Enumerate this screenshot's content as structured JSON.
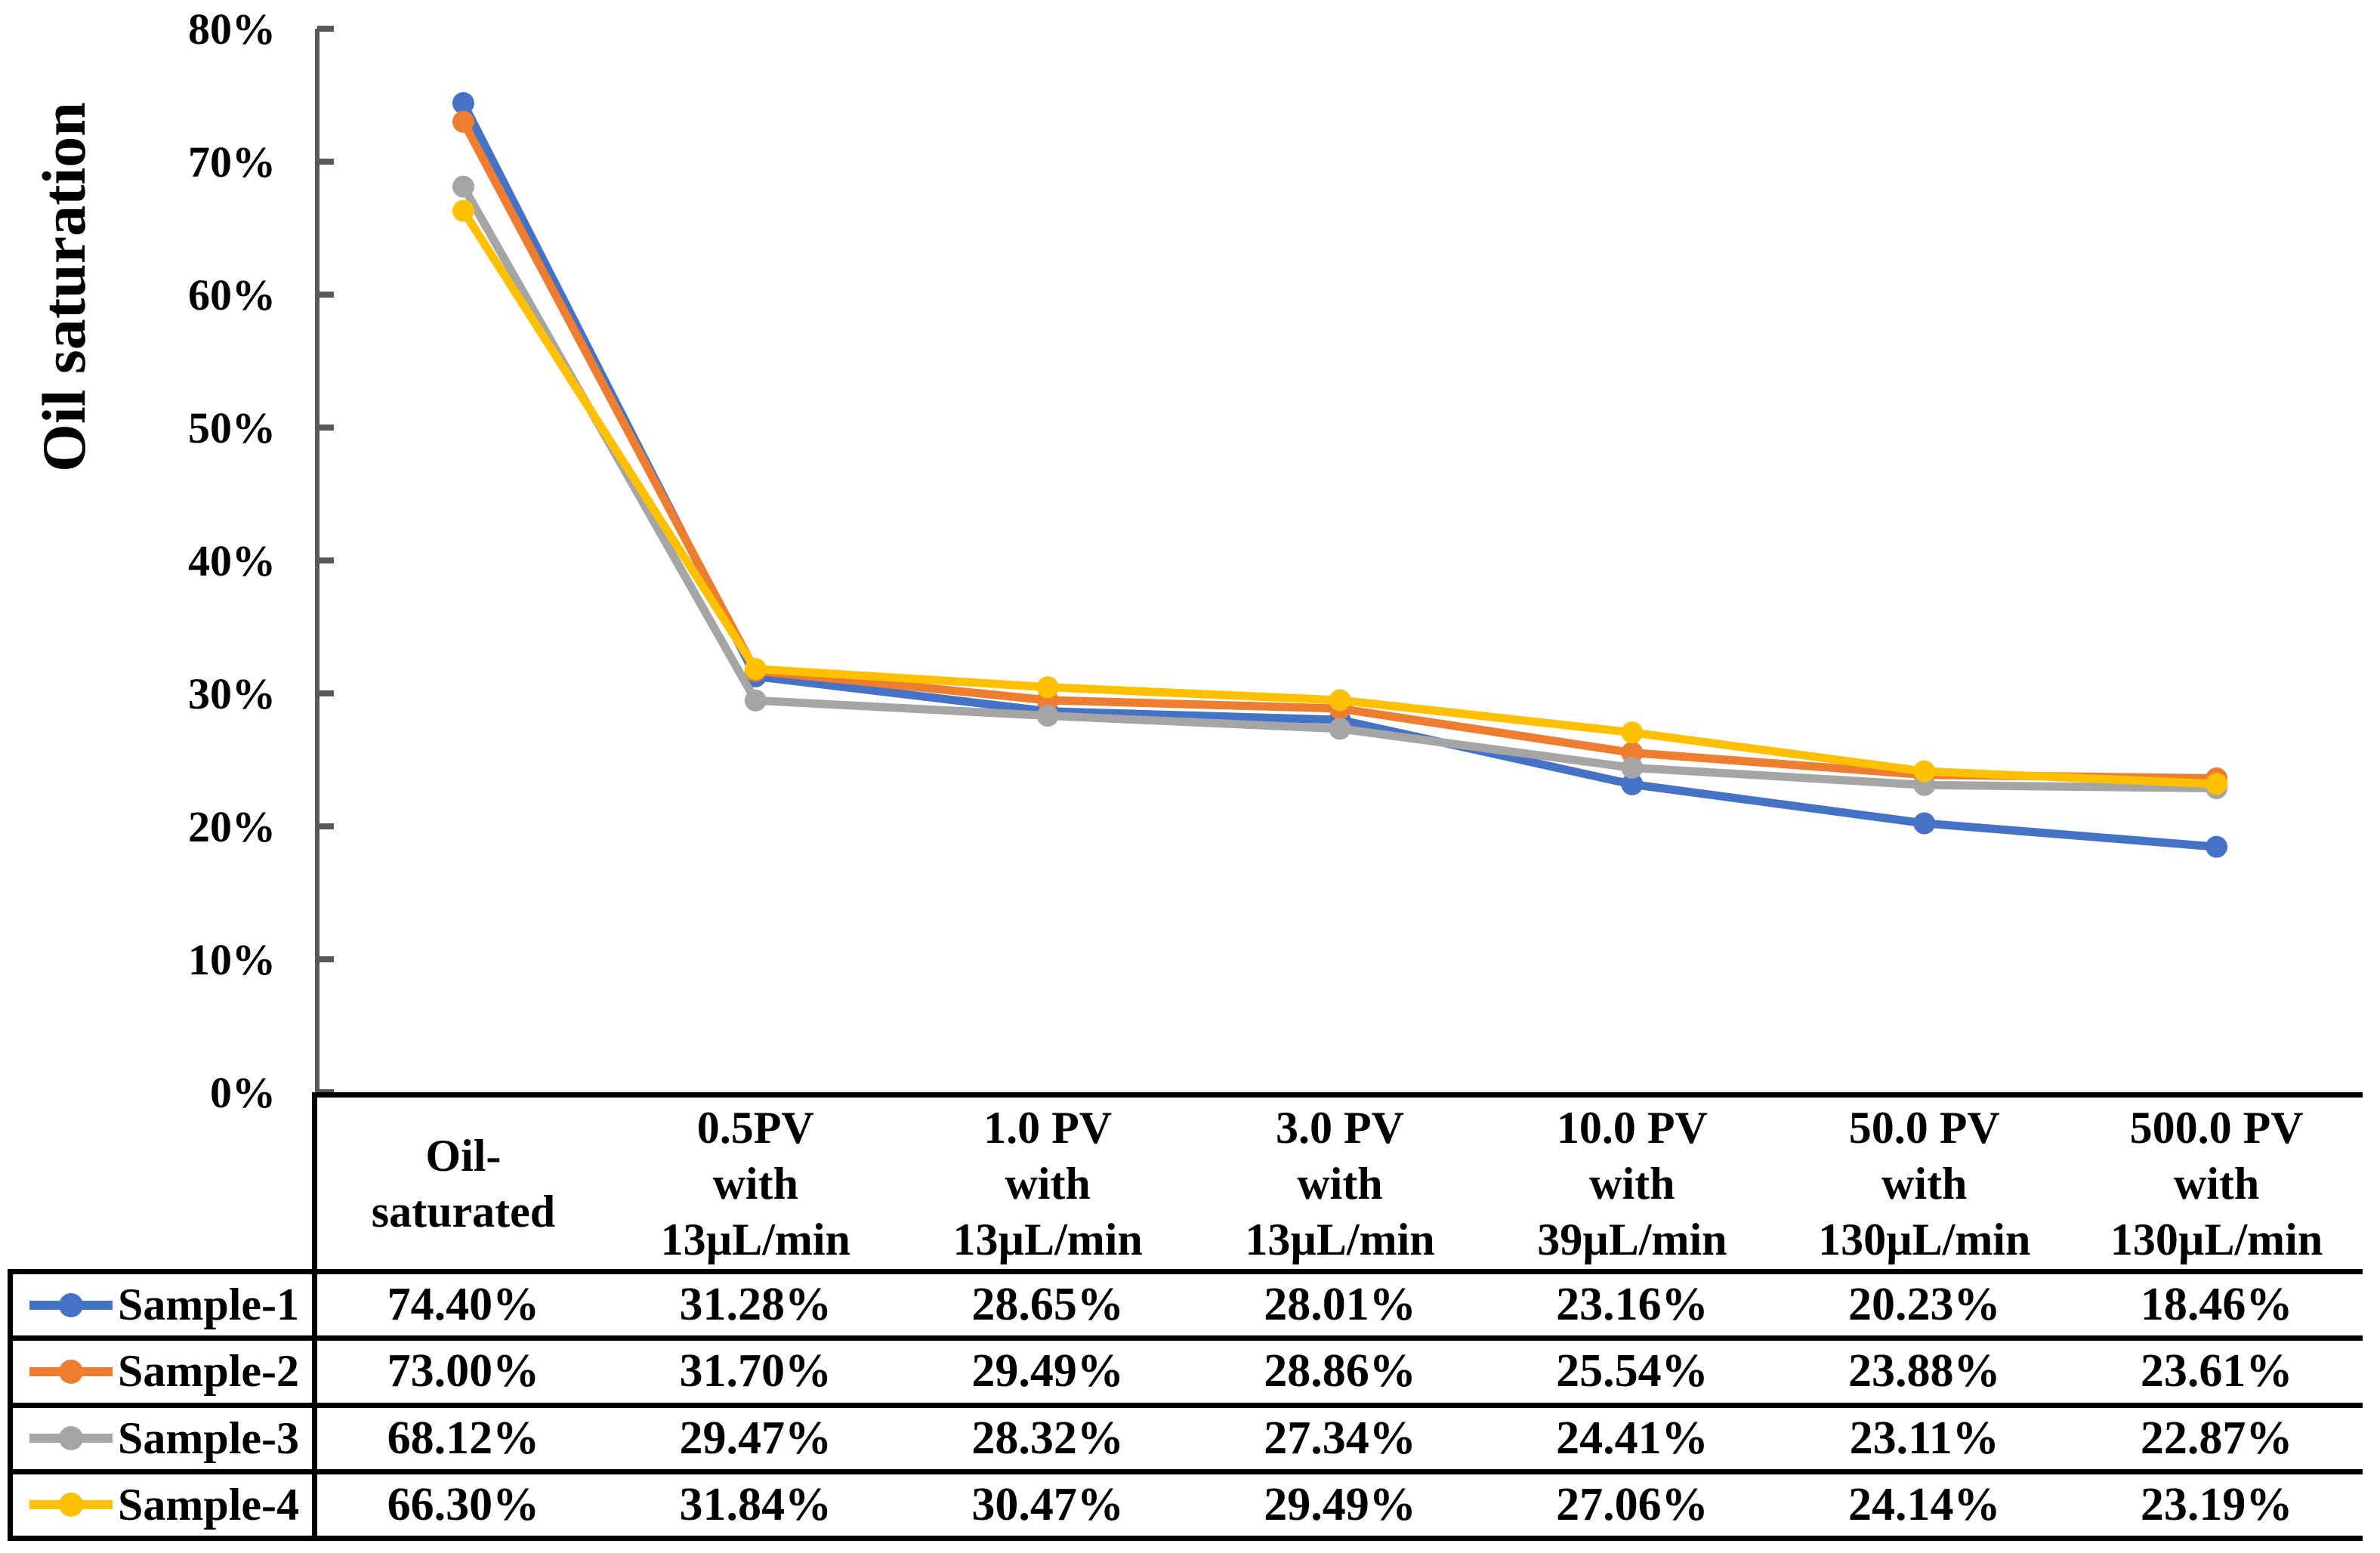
{
  "chart_data": {
    "type": "line",
    "title": "",
    "ylabel": "Oil saturation",
    "xlabel": "",
    "ylim": [
      0,
      80
    ],
    "ytick_step": 10,
    "yticks": [
      "0%",
      "10%",
      "20%",
      "30%",
      "40%",
      "50%",
      "60%",
      "70%",
      "80%"
    ],
    "grid": false,
    "legend_position": "table-rows-left",
    "axis_color": "#595959",
    "border_color": "#000000",
    "categories": [
      "Oil-saturated",
      "0.5PV with 13µL/min",
      "1.0 PV with 13µL/min",
      "3.0 PV with 13µL/min",
      "10.0 PV with 39µL/min",
      "50.0 PV with 130µL/min",
      "500.0 PV with 130µL/min"
    ],
    "category_header_lines": [
      [
        "Oil-",
        "saturated"
      ],
      [
        "0.5PV",
        "with",
        "13µL/min"
      ],
      [
        "1.0 PV",
        "with",
        "13µL/min"
      ],
      [
        "3.0 PV",
        "with",
        "13µL/min"
      ],
      [
        "10.0 PV",
        "with",
        "39µL/min"
      ],
      [
        "50.0 PV",
        "with",
        "130µL/min"
      ],
      [
        "500.0 PV",
        "with",
        "130µL/min"
      ]
    ],
    "series": [
      {
        "name": "Sample-1",
        "color": "#4472C4",
        "values": [
          74.4,
          31.28,
          28.65,
          28.01,
          23.16,
          20.23,
          18.46
        ],
        "display": [
          "74.40%",
          "31.28%",
          "28.65%",
          "28.01%",
          "23.16%",
          "20.23%",
          "18.46%"
        ]
      },
      {
        "name": "Sample-2",
        "color": "#ED7D31",
        "values": [
          73.0,
          31.7,
          29.49,
          28.86,
          25.54,
          23.88,
          23.61
        ],
        "display": [
          "73.00%",
          "31.70%",
          "29.49%",
          "28.86%",
          "25.54%",
          "23.88%",
          "23.61%"
        ]
      },
      {
        "name": "Sample-3",
        "color": "#A5A5A5",
        "values": [
          68.12,
          29.47,
          28.32,
          27.34,
          24.41,
          23.11,
          22.87
        ],
        "display": [
          "68.12%",
          "29.47%",
          "28.32%",
          "27.34%",
          "24.41%",
          "23.11%",
          "22.87%"
        ]
      },
      {
        "name": "Sample-4",
        "color": "#FFC000",
        "values": [
          66.3,
          31.84,
          30.47,
          29.49,
          27.06,
          24.14,
          23.19
        ],
        "display": [
          "66.30%",
          "31.84%",
          "30.47%",
          "29.49%",
          "27.06%",
          "24.14%",
          "23.19%"
        ]
      }
    ]
  }
}
